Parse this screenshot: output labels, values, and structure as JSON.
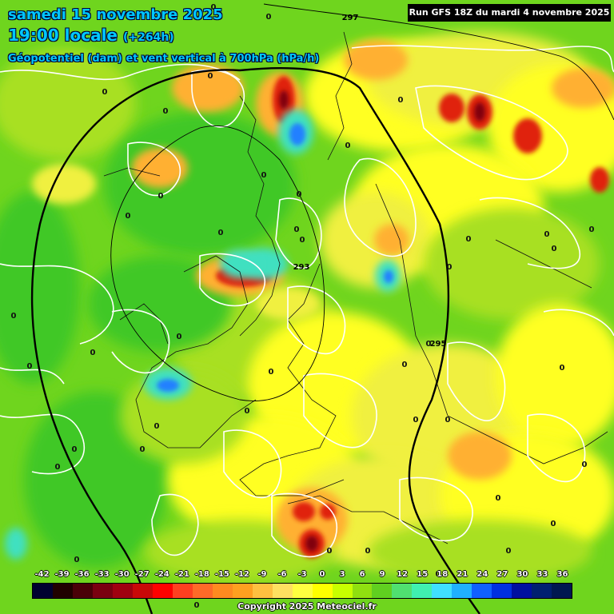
{
  "header": {
    "date": "samedi 15 novembre 2025",
    "time": "19:00 locale",
    "lead": "(+264h)",
    "parameter": "Géopotentiel (dam) et vent vertical à 700hPa (hPa/h)"
  },
  "run": "Run GFS 18Z du mardi 4 novembre 2025",
  "copyright": "Copyright 2025 Meteociel.fr",
  "geopotential_labels": [
    "297",
    "293",
    "295"
  ],
  "zero_label": "0",
  "legend": {
    "ticks": [
      "-42",
      "-39",
      "-36",
      "-33",
      "-30",
      "-27",
      "-24",
      "-21",
      "-18",
      "-15",
      "-12",
      "-9",
      "-6",
      "-3",
      "0",
      "3",
      "6",
      "9",
      "12",
      "15",
      "18",
      "21",
      "24",
      "27",
      "30",
      "33",
      "36"
    ],
    "colors": [
      "#000030",
      "#200000",
      "#4a0008",
      "#7a0010",
      "#a00010",
      "#c80808",
      "#ff0000",
      "#ff4020",
      "#ff6a28",
      "#ff8a20",
      "#ffa020",
      "#ffc040",
      "#ffe060",
      "#ffff40",
      "#ffff00",
      "#c8ff00",
      "#90e010",
      "#60d020",
      "#50e070",
      "#40f0b0",
      "#40e0ff",
      "#20b0ff",
      "#1060ff",
      "#0030e0",
      "#0010a0",
      "#002070",
      "#001850"
    ]
  },
  "field_colors": {
    "base": "#6fd51e",
    "green": "#40c828",
    "light_green": "#a8e020",
    "yellow": "#ffff20",
    "light_yellow": "#f0f040",
    "orange": "#ffb030",
    "red": "#e02010",
    "dark_red": "#800008",
    "cyan": "#40e0c0",
    "blue": "#2080ff"
  }
}
